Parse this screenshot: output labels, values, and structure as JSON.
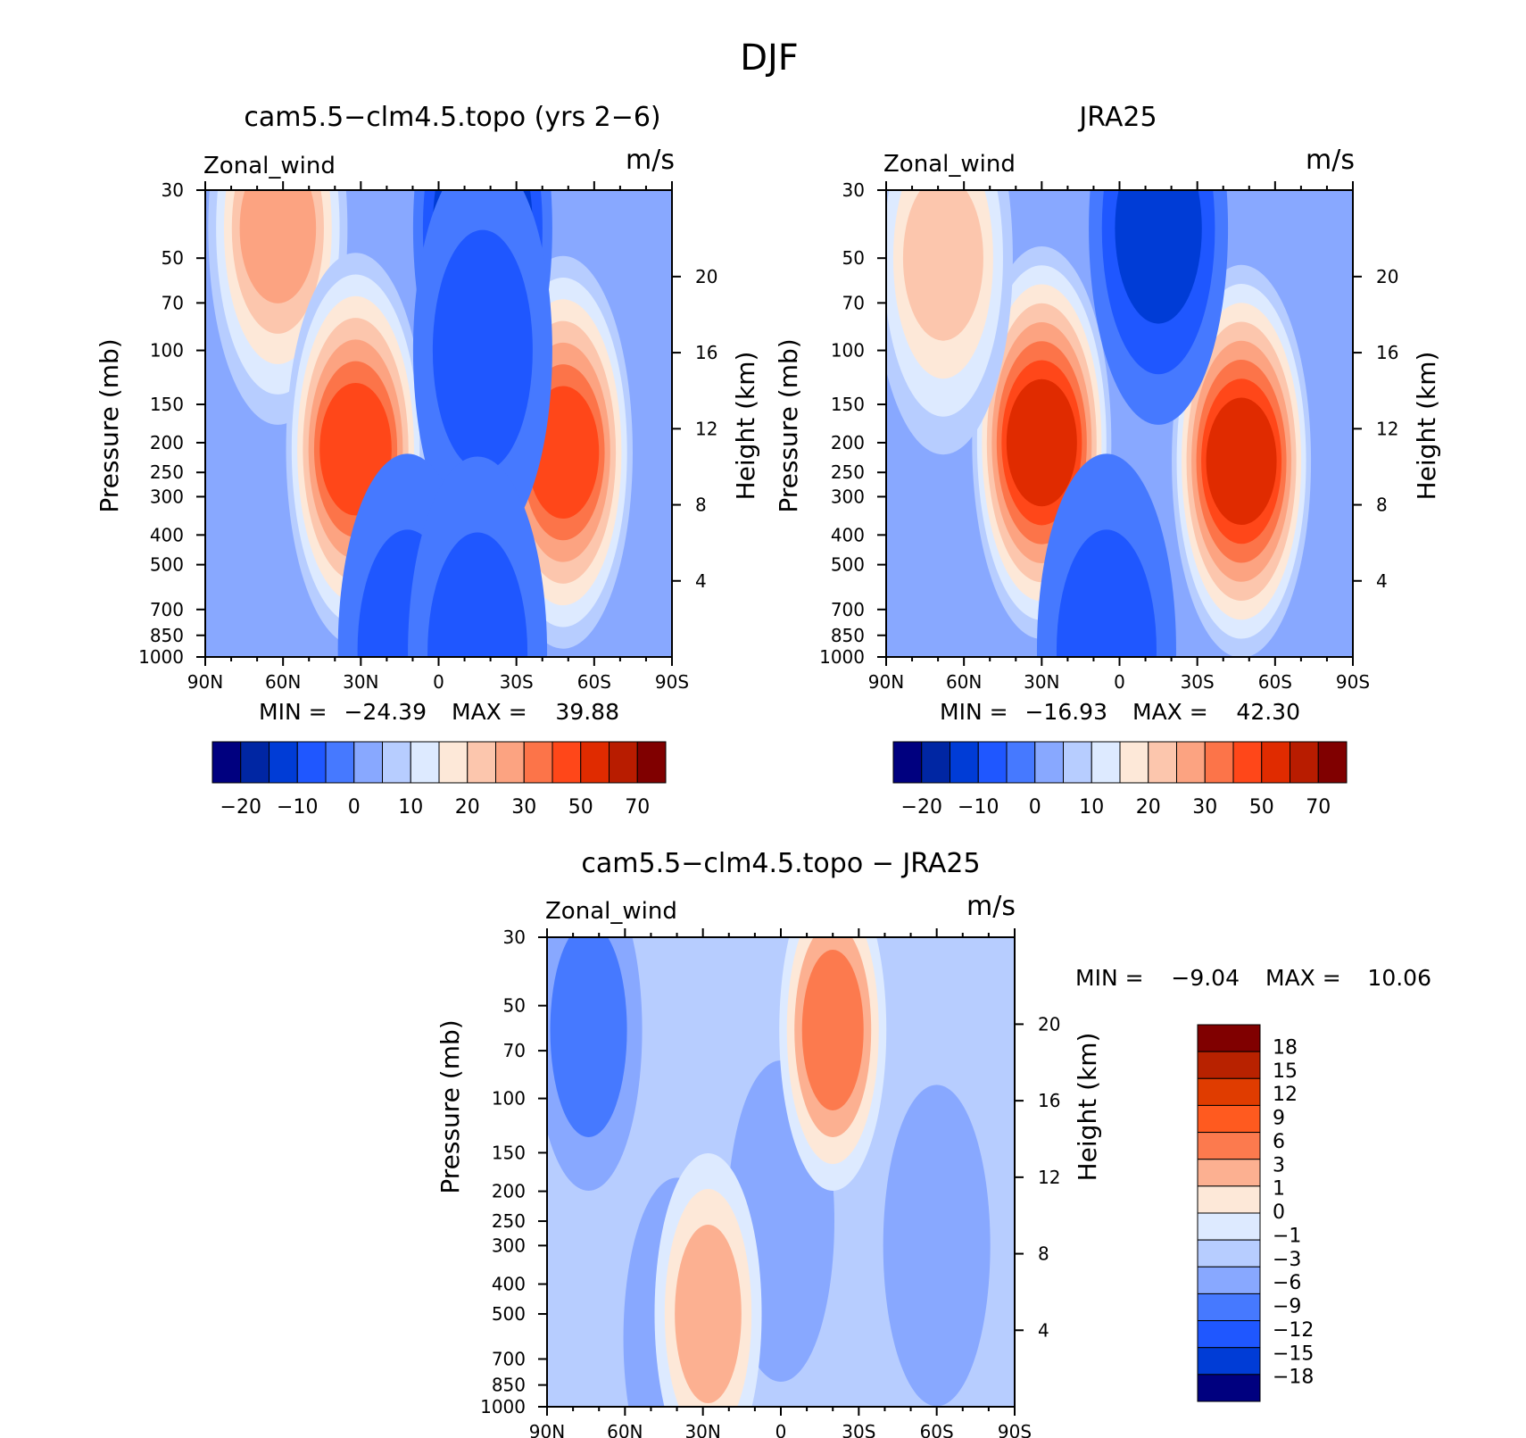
{
  "figure": {
    "title": "DJF"
  },
  "chart_data": [
    {
      "type": "heatmap",
      "title": "cam5.5−clm4.5.topo (yrs 2−6)",
      "left_label": "Zonal_wind",
      "right_label": "m/s",
      "xlabel": "",
      "ylabel": "Pressure (mb)",
      "ylabel_right": "Height (km)",
      "x_ticks": [
        "90N",
        "60N",
        "30N",
        "0",
        "30S",
        "60S",
        "90S"
      ],
      "y_ticks": [
        "30",
        "50",
        "70",
        "100",
        "150",
        "200",
        "250",
        "300",
        "400",
        "500",
        "700",
        "850",
        "1000"
      ],
      "height_ticks": [
        "20",
        "16",
        "12",
        "8",
        "4"
      ],
      "ylim": [
        1000,
        30
      ],
      "stats": {
        "min_label": "MIN =",
        "min": "−24.39",
        "max_label": "MAX =",
        "max": "39.88"
      },
      "colorbar_labels": [
        "−20",
        "−10",
        "0",
        "10",
        "20",
        "30",
        "50",
        "70"
      ],
      "features": [
        {
          "lat": 62,
          "p": 40,
          "level": 10
        },
        {
          "lat": 32,
          "p": 210,
          "level": 12
        },
        {
          "lat": -48,
          "p": 215,
          "level": 12
        },
        {
          "lat": -17,
          "p": 40,
          "level": 1
        },
        {
          "lat": -17,
          "p": 100,
          "level": 3
        },
        {
          "lat": 12,
          "p": 950,
          "level": 3
        },
        {
          "lat": -15,
          "p": 970,
          "level": 3
        }
      ]
    },
    {
      "type": "heatmap",
      "title": "JRA25",
      "left_label": "Zonal_wind",
      "right_label": "m/s",
      "xlabel": "",
      "ylabel": "Pressure (mb)",
      "ylabel_right": "Height (km)",
      "x_ticks": [
        "90N",
        "60N",
        "30N",
        "0",
        "30S",
        "60S",
        "90S"
      ],
      "y_ticks": [
        "30",
        "50",
        "70",
        "100",
        "150",
        "200",
        "250",
        "300",
        "400",
        "500",
        "700",
        "850",
        "1000"
      ],
      "height_ticks": [
        "20",
        "16",
        "12",
        "8",
        "4"
      ],
      "ylim": [
        1000,
        30
      ],
      "stats": {
        "min_label": "MIN =",
        "min": "−16.93",
        "max_label": "MAX =",
        "max": "42.30"
      },
      "colorbar_labels": [
        "−20",
        "−10",
        "0",
        "10",
        "20",
        "30",
        "50",
        "70"
      ],
      "features": [
        {
          "lat": 30,
          "p": 200,
          "level": 13
        },
        {
          "lat": -47,
          "p": 230,
          "level": 13
        },
        {
          "lat": 68,
          "p": 50,
          "level": 9
        },
        {
          "lat": -15,
          "p": 40,
          "level": 2
        },
        {
          "lat": 5,
          "p": 950,
          "level": 3
        }
      ]
    },
    {
      "type": "heatmap",
      "title": "cam5.5−clm4.5.topo − JRA25",
      "left_label": "Zonal_wind",
      "right_label": "m/s",
      "xlabel": "",
      "ylabel": "Pressure (mb)",
      "ylabel_right": "Height (km)",
      "x_ticks": [
        "90N",
        "60N",
        "30N",
        "0",
        "30S",
        "60S",
        "90S"
      ],
      "y_ticks": [
        "30",
        "50",
        "70",
        "100",
        "150",
        "200",
        "250",
        "300",
        "400",
        "500",
        "700",
        "850",
        "1000"
      ],
      "height_ticks": [
        "20",
        "16",
        "12",
        "8",
        "4"
      ],
      "ylim": [
        1000,
        30
      ],
      "stats": {
        "min_label": "MIN =",
        "min": "−9.04",
        "max_label": "MAX =",
        "max": "10.06"
      },
      "colorbar_labels": [
        "18",
        "15",
        "12",
        "9",
        "6",
        "3",
        "1",
        "0",
        "−1",
        "−3",
        "−6",
        "−9",
        "−12",
        "−15",
        "−18"
      ],
      "features": [
        {
          "lat": 74,
          "p": 60,
          "level": 10
        },
        {
          "lat": 40,
          "p": 600,
          "level": 9
        },
        {
          "lat": -60,
          "p": 300,
          "level": 9
        },
        {
          "lat": 0,
          "p": 250,
          "level": 9
        },
        {
          "lat": -20,
          "p": 60,
          "level": 4
        },
        {
          "lat": 28,
          "p": 500,
          "level": 5
        }
      ]
    }
  ],
  "colors": {
    "absolute_scale": [
      "#00007f",
      "#0026a3",
      "#003cd6",
      "#1f57ff",
      "#4679ff",
      "#88a8ff",
      "#b7cdff",
      "#ddeaff",
      "#fde8d8",
      "#fcc6ad",
      "#fca381",
      "#fc7449",
      "#ff4719",
      "#e02b00",
      "#b81c00",
      "#800000"
    ],
    "difference_scale": [
      "#800000",
      "#b82200",
      "#e03c00",
      "#ff5a1f",
      "#fc7a4e",
      "#fcb091",
      "#fde8d8",
      "#ddeaff",
      "#b7cdff",
      "#88a8ff",
      "#4679ff",
      "#1f57ff",
      "#003cd6",
      "#00007f"
    ]
  }
}
